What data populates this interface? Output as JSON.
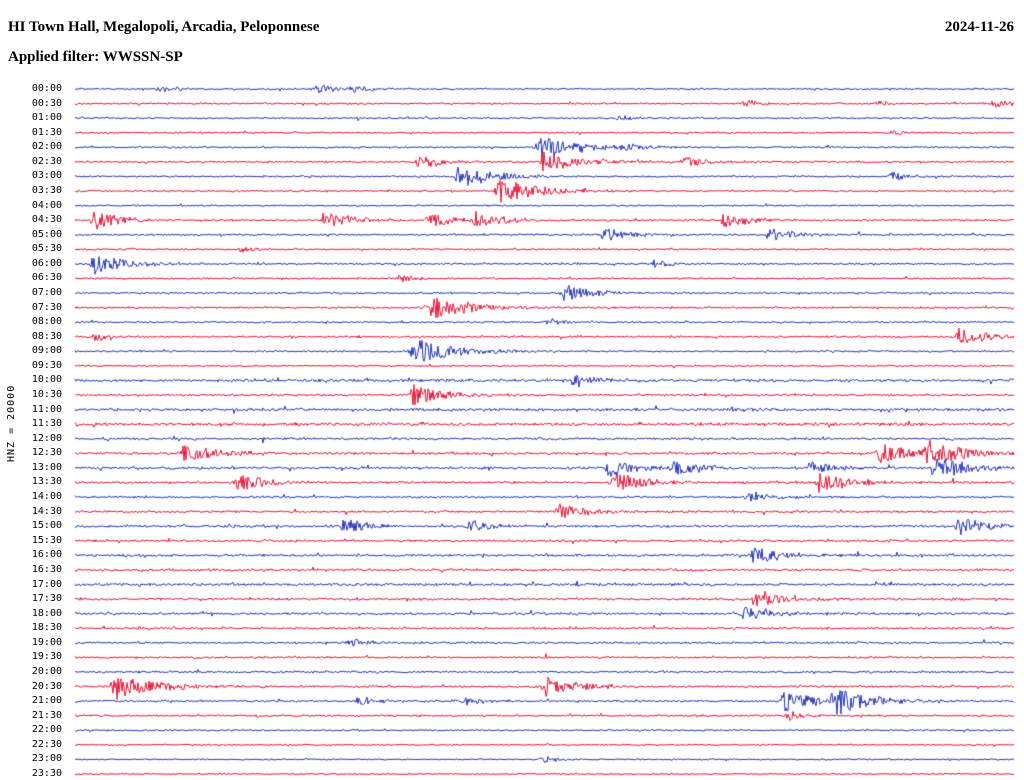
{
  "header": {
    "title": "HI Town Hall, Megalopoli, Arcadia, Peloponnese",
    "date": "2024-11-26",
    "filter_line": "Applied filter: WWSSN-SP"
  },
  "side_label": "HNZ = 20000",
  "chart_data": {
    "type": "line",
    "kind": "helicorder-seismogram",
    "title": "HI Town Hall, Megalopoli, Arcadia, Peloponnese",
    "date": "2024-11-26",
    "filter": "WWSSN-SP",
    "channel_scale": "HNZ = 20000",
    "row_interval_minutes": 30,
    "rows_count": 48,
    "x_axis": "0-30 minutes per row, no tick labels shown",
    "legend_position": "none",
    "grid": false,
    "colors": {
      "red": "#ee1133",
      "blue": "#2233bb"
    },
    "row_fields": {
      "t": "row start time",
      "c": "trace color",
      "n": "background noise amplitude (px)",
      "e": "bursts as [x fraction of row, peak amplitude px]"
    },
    "rows": [
      {
        "t": "00:00",
        "c": "blue",
        "n": 1.0,
        "e": [
          [
            0.091,
            3
          ],
          [
            0.261,
            3
          ],
          [
            0.298,
            2.5
          ]
        ]
      },
      {
        "t": "00:30",
        "c": "red",
        "n": 1.0,
        "e": [
          [
            0.714,
            2.5
          ],
          [
            0.857,
            2.5
          ],
          [
            0.98,
            3
          ]
        ]
      },
      {
        "t": "01:00",
        "c": "blue",
        "n": 0.9,
        "e": [
          [
            0.58,
            2
          ]
        ]
      },
      {
        "t": "01:30",
        "c": "red",
        "n": 0.9,
        "e": [
          [
            0.873,
            2
          ]
        ]
      },
      {
        "t": "02:00",
        "c": "blue",
        "n": 1.0,
        "e": [
          [
            0.495,
            9
          ],
          [
            0.586,
            3
          ]
        ]
      },
      {
        "t": "02:30",
        "c": "red",
        "n": 1.1,
        "e": [
          [
            0.367,
            5
          ],
          [
            0.5,
            8
          ],
          [
            0.65,
            4
          ]
        ]
      },
      {
        "t": "03:00",
        "c": "blue",
        "n": 1.0,
        "e": [
          [
            0.41,
            8
          ],
          [
            0.871,
            3
          ]
        ]
      },
      {
        "t": "03:30",
        "c": "red",
        "n": 1.0,
        "e": [
          [
            0.453,
            9
          ]
        ]
      },
      {
        "t": "04:00",
        "c": "blue",
        "n": 0.9,
        "e": []
      },
      {
        "t": "04:30",
        "c": "red",
        "n": 1.2,
        "e": [
          [
            0.021,
            6
          ],
          [
            0.266,
            6
          ],
          [
            0.378,
            5
          ],
          [
            0.426,
            6
          ],
          [
            0.692,
            5
          ]
        ]
      },
      {
        "t": "05:00",
        "c": "blue",
        "n": 1.1,
        "e": [
          [
            0.564,
            5
          ],
          [
            0.74,
            5
          ]
        ]
      },
      {
        "t": "05:30",
        "c": "red",
        "n": 1.0,
        "e": [
          [
            0.176,
            2.5
          ]
        ]
      },
      {
        "t": "06:00",
        "c": "blue",
        "n": 1.1,
        "e": [
          [
            0.021,
            7
          ],
          [
            0.618,
            3
          ]
        ]
      },
      {
        "t": "06:30",
        "c": "red",
        "n": 1.0,
        "e": [
          [
            0.346,
            2.5
          ]
        ]
      },
      {
        "t": "07:00",
        "c": "blue",
        "n": 1.0,
        "e": [
          [
            0.522,
            6
          ]
        ]
      },
      {
        "t": "07:30",
        "c": "red",
        "n": 1.1,
        "e": [
          [
            0.378,
            9
          ]
        ]
      },
      {
        "t": "08:00",
        "c": "blue",
        "n": 1.0,
        "e": [
          [
            0.506,
            2.5
          ]
        ]
      },
      {
        "t": "08:30",
        "c": "red",
        "n": 1.1,
        "e": [
          [
            0.021,
            3
          ],
          [
            0.943,
            6
          ]
        ]
      },
      {
        "t": "09:00",
        "c": "blue",
        "n": 1.0,
        "e": [
          [
            0.362,
            9
          ]
        ]
      },
      {
        "t": "09:30",
        "c": "red",
        "n": 0.9,
        "e": []
      },
      {
        "t": "10:00",
        "c": "blue",
        "n": 1.6,
        "e": [
          [
            0.533,
            5
          ]
        ]
      },
      {
        "t": "10:30",
        "c": "red",
        "n": 1.2,
        "e": [
          [
            0.36,
            7
          ]
        ]
      },
      {
        "t": "11:00",
        "c": "blue",
        "n": 1.7,
        "e": []
      },
      {
        "t": "11:30",
        "c": "red",
        "n": 1.7,
        "e": []
      },
      {
        "t": "12:00",
        "c": "blue",
        "n": 1.4,
        "e": []
      },
      {
        "t": "12:30",
        "c": "red",
        "n": 1.5,
        "e": [
          [
            0.117,
            7
          ],
          [
            0.857,
            7
          ],
          [
            0.91,
            9
          ]
        ]
      },
      {
        "t": "13:00",
        "c": "blue",
        "n": 1.4,
        "e": [
          [
            0.57,
            6
          ],
          [
            0.639,
            6
          ],
          [
            0.783,
            5
          ],
          [
            0.916,
            8
          ]
        ]
      },
      {
        "t": "13:30",
        "c": "red",
        "n": 1.3,
        "e": [
          [
            0.176,
            6
          ],
          [
            0.575,
            7
          ],
          [
            0.793,
            7
          ]
        ]
      },
      {
        "t": "14:00",
        "c": "blue",
        "n": 1.2,
        "e": [
          [
            0.719,
            4
          ]
        ]
      },
      {
        "t": "14:30",
        "c": "red",
        "n": 1.3,
        "e": [
          [
            0.517,
            6
          ]
        ]
      },
      {
        "t": "15:00",
        "c": "blue",
        "n": 1.3,
        "e": [
          [
            0.288,
            5
          ],
          [
            0.421,
            4
          ],
          [
            0.943,
            6
          ]
        ]
      },
      {
        "t": "15:30",
        "c": "red",
        "n": 1.3,
        "e": []
      },
      {
        "t": "16:00",
        "c": "blue",
        "n": 1.4,
        "e": [
          [
            0.724,
            6
          ]
        ]
      },
      {
        "t": "16:30",
        "c": "red",
        "n": 1.4,
        "e": []
      },
      {
        "t": "17:00",
        "c": "blue",
        "n": 1.5,
        "e": []
      },
      {
        "t": "17:30",
        "c": "red",
        "n": 1.4,
        "e": [
          [
            0.724,
            6
          ]
        ]
      },
      {
        "t": "18:00",
        "c": "blue",
        "n": 1.4,
        "e": [
          [
            0.713,
            5
          ]
        ]
      },
      {
        "t": "18:30",
        "c": "red",
        "n": 1.2,
        "e": []
      },
      {
        "t": "19:00",
        "c": "blue",
        "n": 1.2,
        "e": [
          [
            0.293,
            3
          ]
        ]
      },
      {
        "t": "19:30",
        "c": "red",
        "n": 1.1,
        "e": []
      },
      {
        "t": "20:00",
        "c": "blue",
        "n": 1.2,
        "e": []
      },
      {
        "t": "20:30",
        "c": "red",
        "n": 1.3,
        "e": [
          [
            0.043,
            9
          ],
          [
            0.5,
            7
          ]
        ]
      },
      {
        "t": "21:00",
        "c": "blue",
        "n": 1.2,
        "e": [
          [
            0.304,
            3
          ],
          [
            0.415,
            3
          ],
          [
            0.756,
            7
          ],
          [
            0.809,
            9
          ]
        ]
      },
      {
        "t": "21:30",
        "c": "red",
        "n": 1.1,
        "e": [
          [
            0.761,
            3
          ]
        ]
      },
      {
        "t": "22:00",
        "c": "blue",
        "n": 1.0,
        "e": []
      },
      {
        "t": "22:30",
        "c": "red",
        "n": 0.8,
        "e": []
      },
      {
        "t": "23:00",
        "c": "blue",
        "n": 0.8,
        "e": [
          [
            0.5,
            2.5
          ]
        ]
      },
      {
        "t": "23:30",
        "c": "red",
        "n": 0.8,
        "e": []
      }
    ]
  }
}
